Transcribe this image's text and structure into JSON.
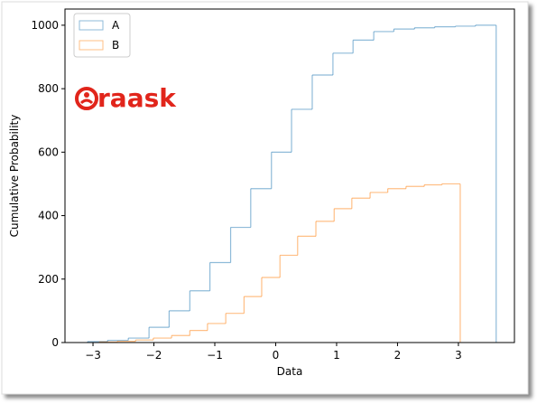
{
  "chart_data": {
    "type": "histogram",
    "cumulative": true,
    "histtype": "step",
    "xlabel": "Data",
    "ylabel": "Cumulative Probability",
    "watermark": "raask",
    "xlim": [
      -3.46,
      3.92
    ],
    "ylim": [
      0,
      1051
    ],
    "xticks": [
      {
        "value": -3,
        "label": "−3"
      },
      {
        "value": -2,
        "label": "−2"
      },
      {
        "value": -1,
        "label": "−1"
      },
      0,
      1,
      2,
      3
    ],
    "yticks": [
      0,
      200,
      400,
      600,
      800,
      1000
    ],
    "legend": "upper left",
    "series": [
      {
        "name": "A",
        "color": "#1f77b4",
        "bins": [
          -3.09,
          -2.76,
          -2.42,
          -2.08,
          -1.75,
          -1.41,
          -1.08,
          -0.74,
          -0.41,
          -0.07,
          0.26,
          0.6,
          0.94,
          1.27,
          1.61,
          1.94,
          2.28,
          2.61,
          2.95,
          3.28,
          3.62
        ],
        "values": [
          3,
          7,
          14,
          48,
          100,
          163,
          252,
          363,
          485,
          600,
          735,
          843,
          912,
          953,
          980,
          988,
          992,
          995,
          997,
          1000
        ]
      },
      {
        "name": "B",
        "color": "#ff7f0e",
        "bins": [
          -2.9,
          -2.6,
          -2.3,
          -2.01,
          -1.71,
          -1.41,
          -1.12,
          -0.82,
          -0.52,
          -0.23,
          0.07,
          0.36,
          0.66,
          0.96,
          1.25,
          1.55,
          1.84,
          2.14,
          2.44,
          2.73,
          3.03
        ],
        "values": [
          2,
          4,
          8,
          14,
          22,
          38,
          60,
          92,
          145,
          205,
          275,
          335,
          382,
          422,
          455,
          473,
          485,
          492,
          497,
          500
        ]
      }
    ]
  }
}
